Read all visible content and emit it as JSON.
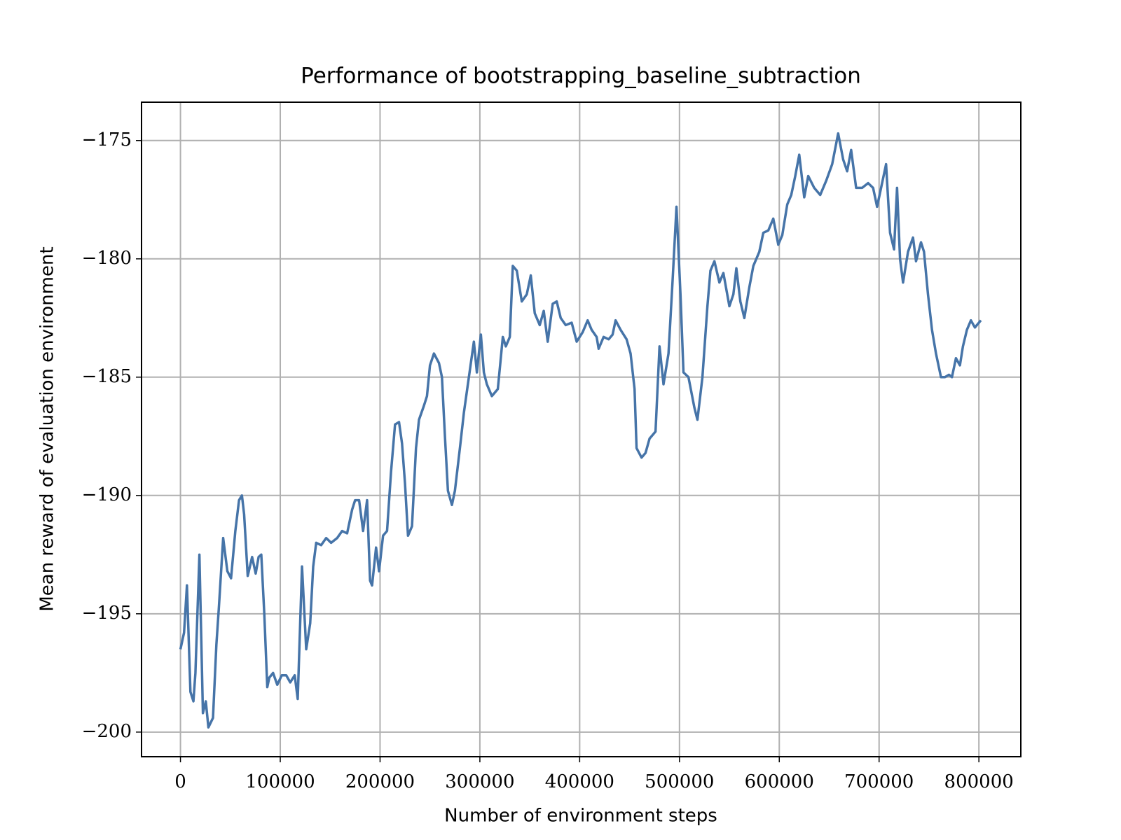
{
  "chart_data": {
    "type": "line",
    "title": "Performance of bootstrapping_baseline_subtraction",
    "x_label": "Number of environment steps",
    "y_label": "Mean reward of evaluation environment",
    "xlim": [
      -39000,
      842000
    ],
    "ylim": [
      -201.04,
      -173.38
    ],
    "xticks": [
      0,
      100000,
      200000,
      300000,
      400000,
      500000,
      600000,
      700000,
      800000
    ],
    "yticks": [
      {
        "value": -200,
        "label": "−200"
      },
      {
        "value": -195,
        "label": "−195"
      },
      {
        "value": -190,
        "label": "−190"
      },
      {
        "value": -185,
        "label": "−185"
      },
      {
        "value": -180,
        "label": "−180"
      },
      {
        "value": -175,
        "label": "−175"
      }
    ],
    "grid": true,
    "x": [
      0,
      3600,
      6500,
      10000,
      13000,
      15000,
      19000,
      22500,
      25400,
      28000,
      32600,
      36000,
      38400,
      42800,
      47000,
      50700,
      55000,
      58700,
      61600,
      63800,
      67400,
      71800,
      75400,
      78300,
      81000,
      84000,
      87000,
      89000,
      92800,
      97000,
      101500,
      106000,
      110000,
      114500,
      117500,
      121800,
      126000,
      130000,
      133000,
      136000,
      141000,
      146000,
      151000,
      157000,
      162000,
      167000,
      172000,
      175000,
      179000,
      183000,
      187000,
      190000,
      192000,
      196000,
      199000,
      203000,
      207000,
      211000,
      215000,
      219000,
      222000,
      225000,
      228000,
      232000,
      236000,
      239000,
      244000,
      247000,
      250000,
      254000,
      259000,
      262000,
      265000,
      268000,
      272000,
      275000,
      280000,
      284000,
      289000,
      294000,
      297000,
      301000,
      304000,
      307000,
      312000,
      318000,
      323000,
      326000,
      330000,
      333000,
      337000,
      342000,
      347000,
      351000,
      355000,
      360000,
      364000,
      368000,
      373000,
      377000,
      381000,
      386000,
      392000,
      397000,
      403000,
      408000,
      412000,
      417000,
      419000,
      424000,
      429000,
      433000,
      436000,
      441000,
      447000,
      451000,
      455000,
      457000,
      462000,
      466000,
      470000,
      476000,
      480000,
      484000,
      489000,
      493000,
      497000,
      501000,
      504000,
      509000,
      515000,
      518000,
      523000,
      528000,
      531000,
      535000,
      540000,
      544000,
      550000,
      554000,
      557000,
      561000,
      565000,
      570000,
      574000,
      580000,
      584000,
      589000,
      594000,
      599000,
      603000,
      608000,
      612000,
      616000,
      620000,
      625000,
      629000,
      635000,
      641000,
      647000,
      653000,
      659000,
      664000,
      668000,
      672000,
      677000,
      683000,
      689000,
      694000,
      698000,
      703000,
      707000,
      711000,
      715000,
      718000,
      721000,
      724000,
      729000,
      734000,
      737000,
      742000,
      745000,
      749000,
      753000,
      757000,
      762000,
      766000,
      770000,
      773000,
      777000,
      781000,
      784000,
      788000,
      792000,
      796000,
      802000
    ],
    "series": [
      {
        "name": "bootstrapping_baseline_subtraction",
        "color": "#4674a8",
        "values": [
          -196.5,
          -195.8,
          -193.8,
          -198.3,
          -198.7,
          -197.5,
          -192.5,
          -199.2,
          -198.7,
          -199.8,
          -199.4,
          -196.3,
          -194.8,
          -191.8,
          -193.2,
          -193.5,
          -191.5,
          -190.2,
          -190.0,
          -190.8,
          -193.4,
          -192.6,
          -193.3,
          -192.6,
          -192.5,
          -195.0,
          -198.1,
          -197.7,
          -197.5,
          -198.0,
          -197.6,
          -197.6,
          -197.9,
          -197.6,
          -198.6,
          -193.0,
          -196.5,
          -195.4,
          -193.0,
          -192.0,
          -192.1,
          -191.8,
          -192.0,
          -191.8,
          -191.5,
          -191.6,
          -190.6,
          -190.2,
          -190.2,
          -191.5,
          -190.2,
          -193.6,
          -193.8,
          -192.2,
          -193.2,
          -191.7,
          -191.5,
          -189.0,
          -187.0,
          -186.9,
          -187.8,
          -189.5,
          -191.7,
          -191.3,
          -188.0,
          -186.8,
          -186.2,
          -185.8,
          -184.5,
          -184.0,
          -184.4,
          -185.0,
          -187.5,
          -189.8,
          -190.4,
          -189.8,
          -188.0,
          -186.5,
          -185.0,
          -183.5,
          -184.8,
          -183.2,
          -184.8,
          -185.3,
          -185.8,
          -185.5,
          -183.3,
          -183.7,
          -183.3,
          -180.3,
          -180.5,
          -181.8,
          -181.5,
          -180.7,
          -182.3,
          -182.8,
          -182.2,
          -183.5,
          -181.9,
          -181.8,
          -182.5,
          -182.8,
          -182.7,
          -183.5,
          -183.1,
          -182.6,
          -183.0,
          -183.3,
          -183.8,
          -183.3,
          -183.4,
          -183.2,
          -182.6,
          -183.0,
          -183.4,
          -184.0,
          -185.5,
          -188.0,
          -188.4,
          -188.2,
          -187.6,
          -187.3,
          -183.7,
          -185.3,
          -184.0,
          -181.0,
          -177.8,
          -181.5,
          -184.8,
          -185.0,
          -186.3,
          -186.8,
          -185.0,
          -182.0,
          -180.5,
          -180.1,
          -181.0,
          -180.6,
          -182.0,
          -181.5,
          -180.4,
          -181.8,
          -182.5,
          -181.2,
          -180.3,
          -179.7,
          -178.9,
          -178.8,
          -178.3,
          -179.4,
          -179.0,
          -177.7,
          -177.3,
          -176.5,
          -175.6,
          -177.4,
          -176.5,
          -177.0,
          -177.3,
          -176.7,
          -176.0,
          -174.7,
          -175.8,
          -176.3,
          -175.4,
          -177.0,
          -177.0,
          -176.8,
          -177.0,
          -177.8,
          -176.8,
          -176.0,
          -178.9,
          -179.6,
          -177.0,
          -180.0,
          -181.0,
          -179.7,
          -179.1,
          -180.1,
          -179.3,
          -179.7,
          -181.5,
          -183.0,
          -184.0,
          -185.0,
          -185.0,
          -184.9,
          -185.0,
          -184.2,
          -184.5,
          -183.7,
          -183.0,
          -182.6,
          -182.9,
          -182.6
        ]
      }
    ]
  }
}
